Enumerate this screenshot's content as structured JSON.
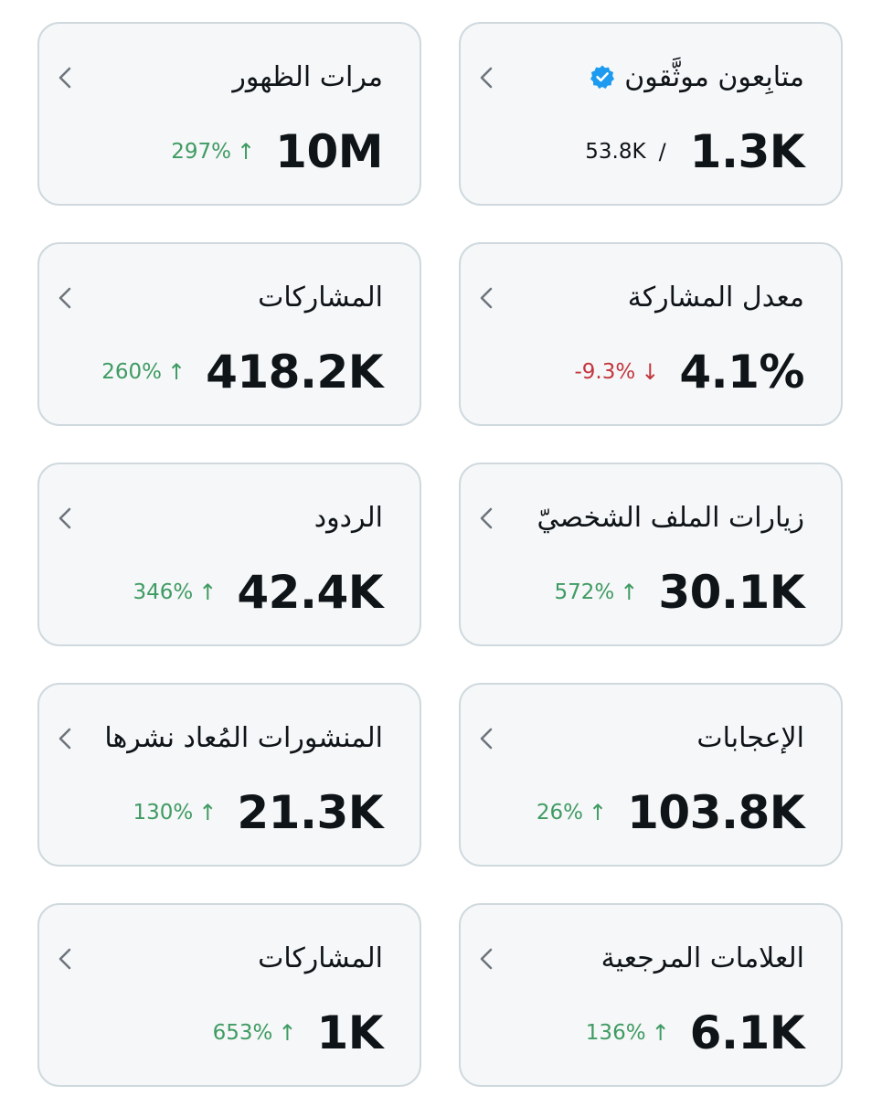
{
  "colors": {
    "up": "#3f9b63",
    "down": "#c3373f",
    "card_bg": "#f6f7f8",
    "card_border": "#cfd9de",
    "verified": "#1d9bf0"
  },
  "cards": [
    {
      "title": "متابِعون موثَّقون",
      "value": "1.3K",
      "secondary": "53.8K",
      "secondary_sep": "/",
      "icon": "verified-badge-icon"
    },
    {
      "title": "مرات الظهور",
      "value": "10M",
      "change": "297%",
      "direction": "up"
    },
    {
      "title": "معدل المشاركة",
      "value": "4.1%",
      "change": "-9.3%",
      "direction": "down"
    },
    {
      "title": "المشاركات",
      "value": "418.2K",
      "change": "260%",
      "direction": "up"
    },
    {
      "title": "زيارات الملف الشخصيّ",
      "value": "30.1K",
      "change": "572%",
      "direction": "up"
    },
    {
      "title": "الردود",
      "value": "42.4K",
      "change": "346%",
      "direction": "up"
    },
    {
      "title": "الإعجابات",
      "value": "103.8K",
      "change": "26%",
      "direction": "up"
    },
    {
      "title": "المنشورات المُعاد نشرها",
      "value": "21.3K",
      "change": "130%",
      "direction": "up"
    },
    {
      "title": "العلامات المرجعية",
      "value": "6.1K",
      "change": "136%",
      "direction": "up"
    },
    {
      "title": "المشاركات",
      "value": "1K",
      "change": "653%",
      "direction": "up"
    }
  ],
  "arrows": {
    "up": "↑",
    "down": "↓"
  }
}
